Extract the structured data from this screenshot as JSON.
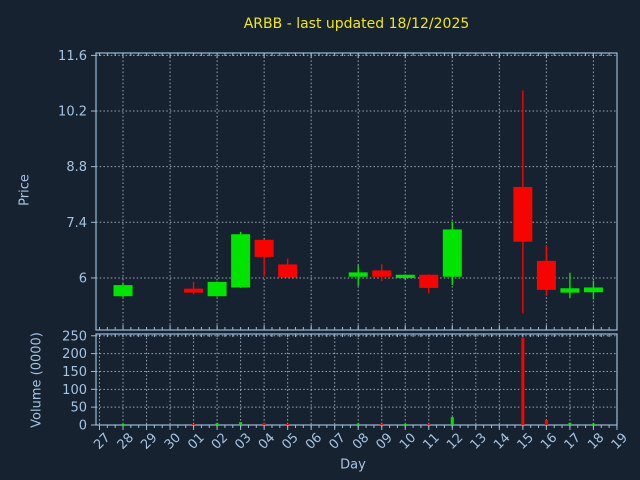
{
  "title": "ARBB - last updated 18/12/2025",
  "colors": {
    "background": "#162230",
    "spine": "#9db9d6",
    "label": "#a6c3e2",
    "grid": "#b6bec8",
    "title": "#f0e816",
    "up": "#00e400",
    "down": "#f60400"
  },
  "chart_data": {
    "type": "candlestick",
    "title": "ARBB - last updated 18/12/2025",
    "xlabel": "Day",
    "legend_position": "none",
    "grid": "on",
    "categories": [
      "27",
      "28",
      "29",
      "30",
      "01",
      "02",
      "03",
      "04",
      "05",
      "06",
      "07",
      "08",
      "09",
      "10",
      "11",
      "12",
      "13",
      "14",
      "15",
      "16",
      "17",
      "18",
      "19"
    ],
    "panels": [
      {
        "name": "price",
        "ylabel": "Price",
        "yticks": [
          6,
          7.4,
          8.8,
          10.2,
          11.6
        ],
        "ylim": [
          4.69,
          11.66
        ]
      },
      {
        "name": "volume",
        "ylabel": "Volume (0000)",
        "yticks": [
          0,
          50,
          100,
          150,
          200,
          250
        ],
        "ylim": [
          0,
          255
        ]
      }
    ],
    "ohlc": [
      null,
      {
        "o": 5.54,
        "h": 5.88,
        "l": 5.52,
        "c": 5.82
      },
      null,
      null,
      {
        "o": 5.73,
        "h": 5.9,
        "l": 5.59,
        "c": 5.63
      },
      {
        "o": 5.54,
        "h": 5.91,
        "l": 5.53,
        "c": 5.9
      },
      {
        "o": 5.76,
        "h": 7.16,
        "l": 5.75,
        "c": 7.1
      },
      {
        "o": 6.96,
        "h": 6.97,
        "l": 6.03,
        "c": 6.53
      },
      {
        "o": 6.34,
        "h": 6.49,
        "l": 6.0,
        "c": 6.01
      },
      null,
      null,
      {
        "o": 6.03,
        "h": 6.32,
        "l": 5.8,
        "c": 6.14
      },
      {
        "o": 6.19,
        "h": 6.34,
        "l": 5.92,
        "c": 6.03
      },
      {
        "o": 6.0,
        "h": 6.09,
        "l": 5.95,
        "c": 6.08
      },
      {
        "o": 6.08,
        "h": 6.09,
        "l": 5.61,
        "c": 5.75
      },
      {
        "o": 6.03,
        "h": 7.41,
        "l": 5.82,
        "c": 7.22
      },
      null,
      null,
      {
        "o": 8.29,
        "h": 10.72,
        "l": 5.11,
        "c": 6.91
      },
      {
        "o": 6.43,
        "h": 6.81,
        "l": 5.55,
        "c": 5.7
      },
      {
        "o": 5.63,
        "h": 6.13,
        "l": 5.49,
        "c": 5.74
      },
      {
        "o": 5.64,
        "h": 5.93,
        "l": 5.46,
        "c": 5.76
      },
      null
    ],
    "volume": [
      0,
      1,
      0,
      0,
      1,
      5,
      8,
      6,
      1,
      0,
      0,
      4,
      3,
      1,
      1,
      22,
      0,
      0,
      245,
      14,
      6,
      4,
      0
    ]
  }
}
